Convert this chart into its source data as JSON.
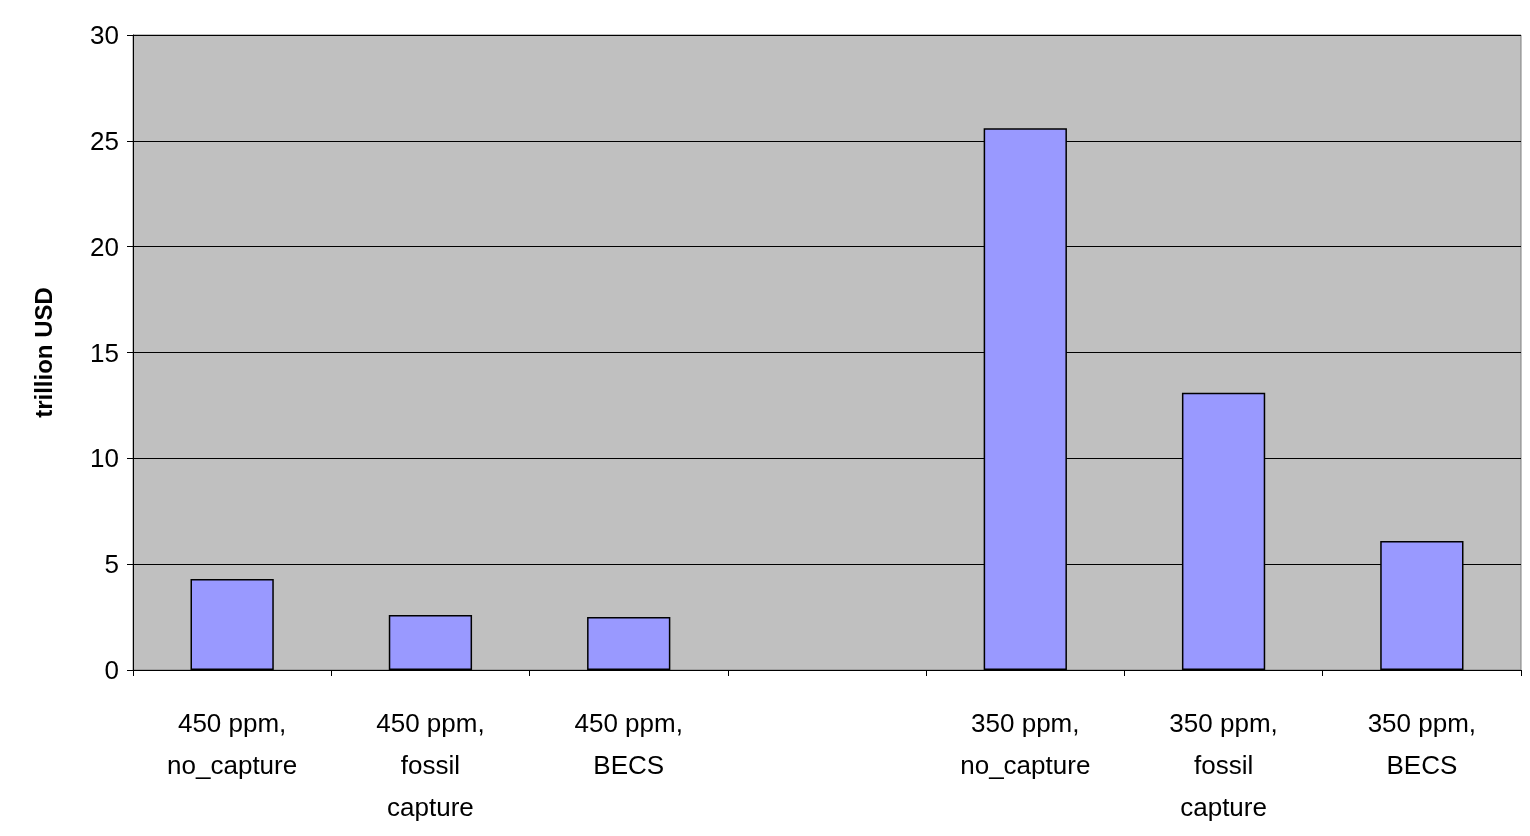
{
  "chart_data": {
    "type": "bar",
    "ylabel": "trillion USD",
    "categories": [
      "450 ppm,\nno_capture",
      "450 ppm,\nfossil\ncapture",
      "450 ppm,\nBECS",
      null,
      "350 ppm,\nno_capture",
      "350 ppm,\nfossil\ncapture",
      "350 ppm,\nBECS"
    ],
    "values": [
      4.3,
      2.6,
      2.5,
      null,
      25.6,
      13.1,
      6.1
    ],
    "color": "#9999ff",
    "ylim": [
      0,
      30
    ],
    "yticks": [
      0,
      5,
      10,
      15,
      20,
      25,
      30
    ],
    "grid": "y"
  }
}
